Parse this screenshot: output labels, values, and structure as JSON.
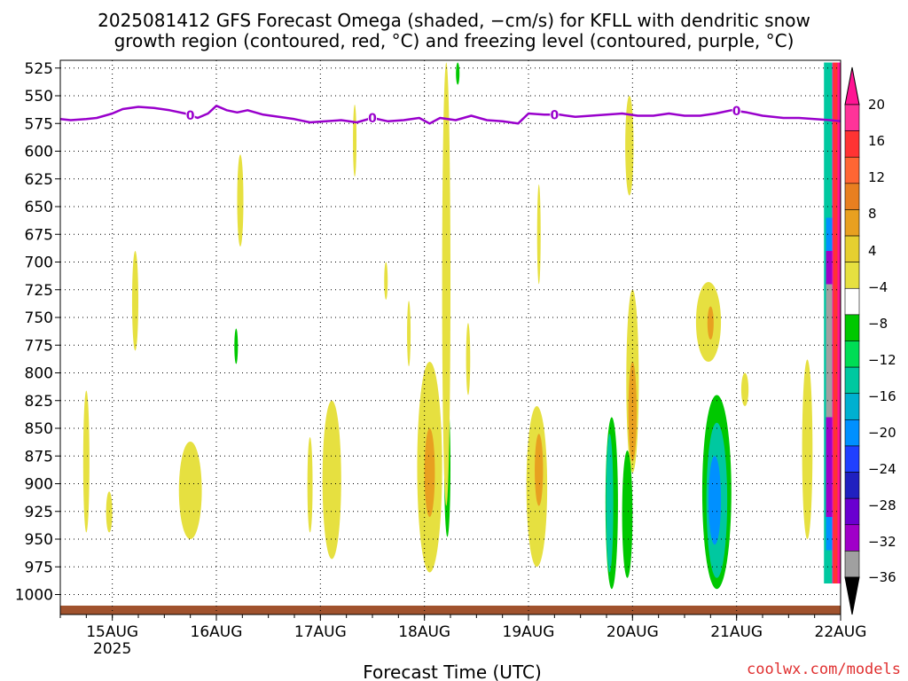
{
  "chart_data": {
    "type": "time-height",
    "title_lines": [
      "2025081412 GFS Forecast Omega (shaded, −cm/s) for KFLL with dendritic snow",
      "growth region (contoured, red, °C) and freezing level (contoured, purple, °C)"
    ],
    "xlabel": "Forecast Time (UTC)",
    "credit": "coolwx.com/models",
    "x_range_days": [
      "14AUG 12Z",
      "22AUG 00Z"
    ],
    "x_ticks": [
      {
        "label": "15AUG",
        "sublabel": "2025",
        "day": 15
      },
      {
        "label": "16AUG",
        "sublabel": "",
        "day": 16
      },
      {
        "label": "17AUG",
        "sublabel": "",
        "day": 17
      },
      {
        "label": "18AUG",
        "sublabel": "",
        "day": 18
      },
      {
        "label": "19AUG",
        "sublabel": "",
        "day": 19
      },
      {
        "label": "20AUG",
        "sublabel": "",
        "day": 20
      },
      {
        "label": "21AUG",
        "sublabel": "",
        "day": 21
      },
      {
        "label": "22AUG",
        "sublabel": "",
        "day": 22
      }
    ],
    "y_ticks_hpa": [
      "525",
      "550",
      "575",
      "600",
      "625",
      "650",
      "675",
      "700",
      "725",
      "750",
      "775",
      "800",
      "825",
      "850",
      "875",
      "900",
      "925",
      "950",
      "975",
      "1000"
    ],
    "y_range_hpa": [
      518,
      1018
    ],
    "grid": "dotted",
    "colorbar": {
      "labels": [
        "20",
        "16",
        "12",
        "8",
        "4",
        "−4",
        "−8",
        "−12",
        "−16",
        "−20",
        "−24",
        "−28",
        "−32",
        "−36"
      ],
      "bands": [
        "#ff3399",
        "#ff3333",
        "#ff6633",
        "#e87f20",
        "#e8a020",
        "#e6cf30",
        "#e6e040",
        "#ffffff",
        "#00c800",
        "#00dd55",
        "#00c8a0",
        "#00b0d0",
        "#0090ff",
        "#2040ff",
        "#2020c0",
        "#6a00d0",
        "#a000c8",
        "#a0a0a0"
      ],
      "top_arrow": "#ff1493",
      "bottom_arrow": "#000000"
    },
    "freezing_level": {
      "color": "#9900cc",
      "contour_label": "0",
      "label_days": [
        15.75,
        17.5,
        19.25,
        21.0
      ],
      "points": [
        [
          14.5,
          571
        ],
        [
          14.6,
          572
        ],
        [
          14.75,
          571
        ],
        [
          14.85,
          570
        ],
        [
          15.0,
          566
        ],
        [
          15.1,
          562
        ],
        [
          15.25,
          560
        ],
        [
          15.4,
          561
        ],
        [
          15.55,
          563
        ],
        [
          15.7,
          566
        ],
        [
          15.82,
          570
        ],
        [
          15.92,
          566
        ],
        [
          16.0,
          559
        ],
        [
          16.1,
          563
        ],
        [
          16.2,
          565
        ],
        [
          16.3,
          563
        ],
        [
          16.45,
          567
        ],
        [
          16.6,
          569
        ],
        [
          16.75,
          571
        ],
        [
          16.9,
          574
        ],
        [
          17.05,
          573
        ],
        [
          17.2,
          572
        ],
        [
          17.35,
          574
        ],
        [
          17.5,
          570
        ],
        [
          17.65,
          573
        ],
        [
          17.8,
          572
        ],
        [
          17.95,
          570
        ],
        [
          18.05,
          575
        ],
        [
          18.15,
          570
        ],
        [
          18.3,
          572
        ],
        [
          18.45,
          568
        ],
        [
          18.6,
          572
        ],
        [
          18.75,
          573
        ],
        [
          18.9,
          575
        ],
        [
          19.0,
          566
        ],
        [
          19.15,
          567
        ],
        [
          19.3,
          567
        ],
        [
          19.45,
          569
        ],
        [
          19.6,
          568
        ],
        [
          19.75,
          567
        ],
        [
          19.9,
          566
        ],
        [
          20.05,
          568
        ],
        [
          20.2,
          568
        ],
        [
          20.35,
          566
        ],
        [
          20.5,
          568
        ],
        [
          20.65,
          568
        ],
        [
          20.8,
          566
        ],
        [
          20.95,
          563
        ],
        [
          21.1,
          565
        ],
        [
          21.25,
          568
        ],
        [
          21.35,
          569
        ],
        [
          21.45,
          570
        ],
        [
          21.6,
          570
        ],
        [
          21.75,
          571
        ],
        [
          21.9,
          572
        ],
        [
          22.0,
          573
        ]
      ]
    },
    "omega_regions": [
      {
        "day": 14.75,
        "p_top": 816,
        "p_bot": 944,
        "half_days": 0.03,
        "color": "#e6e040"
      },
      {
        "day": 14.97,
        "p_top": 907,
        "p_bot": 944,
        "half_days": 0.03,
        "color": "#e6e040"
      },
      {
        "day": 15.22,
        "p_top": 690,
        "p_bot": 780,
        "half_days": 0.03,
        "color": "#e6e040"
      },
      {
        "day": 15.75,
        "p_top": 862,
        "p_bot": 950,
        "half_days": 0.11,
        "color": "#e6e040"
      },
      {
        "day": 16.23,
        "p_top": 603,
        "p_bot": 686,
        "half_days": 0.03,
        "color": "#e6e040"
      },
      {
        "day": 16.19,
        "p_top": 760,
        "p_bot": 792,
        "half_days": 0.012,
        "color": "#00c800"
      },
      {
        "day": 16.9,
        "p_top": 858,
        "p_bot": 944,
        "half_days": 0.025,
        "color": "#e6e040"
      },
      {
        "day": 17.11,
        "p_top": 825,
        "p_bot": 968,
        "half_days": 0.09,
        "color": "#e6e040"
      },
      {
        "day": 17.33,
        "p_top": 558,
        "p_bot": 623,
        "half_days": 0.012,
        "color": "#e6e040"
      },
      {
        "day": 17.63,
        "p_top": 700,
        "p_bot": 734,
        "half_days": 0.01,
        "color": "#e6e040"
      },
      {
        "day": 17.85,
        "p_top": 735,
        "p_bot": 794,
        "half_days": 0.012,
        "color": "#e6e040"
      },
      {
        "day": 18.05,
        "p_top": 790,
        "p_bot": 980,
        "half_days": 0.12,
        "color": "#e6e040"
      },
      {
        "day": 18.05,
        "p_top": 850,
        "p_bot": 930,
        "half_days": 0.05,
        "color": "#e8a020"
      },
      {
        "day": 18.22,
        "p_top": 822,
        "p_bot": 948,
        "half_days": 0.03,
        "color": "#00c800"
      },
      {
        "day": 18.21,
        "p_top": 520,
        "p_bot": 920,
        "half_days": 0.04,
        "color": "#e6e040"
      },
      {
        "day": 18.32,
        "p_top": 520,
        "p_bot": 540,
        "half_days": 0.01,
        "color": "#00c800"
      },
      {
        "day": 18.42,
        "p_top": 755,
        "p_bot": 820,
        "half_days": 0.02,
        "color": "#e6e040"
      },
      {
        "day": 19.08,
        "p_top": 830,
        "p_bot": 975,
        "half_days": 0.1,
        "color": "#e6e040"
      },
      {
        "day": 19.1,
        "p_top": 855,
        "p_bot": 920,
        "half_days": 0.04,
        "color": "#e8a020"
      },
      {
        "day": 19.1,
        "p_top": 630,
        "p_bot": 720,
        "half_days": 0.012,
        "color": "#e6e040"
      },
      {
        "day": 19.97,
        "p_top": 550,
        "p_bot": 640,
        "half_days": 0.04,
        "color": "#e6e040"
      },
      {
        "day": 20.0,
        "p_top": 725,
        "p_bot": 890,
        "half_days": 0.06,
        "color": "#e6e040"
      },
      {
        "day": 20.0,
        "p_top": 790,
        "p_bot": 880,
        "half_days": 0.04,
        "color": "#e8a020"
      },
      {
        "day": 19.95,
        "p_top": 870,
        "p_bot": 985,
        "half_days": 0.05,
        "color": "#00c800"
      },
      {
        "day": 19.8,
        "p_top": 840,
        "p_bot": 995,
        "half_days": 0.06,
        "color": "#00c800"
      },
      {
        "day": 19.78,
        "p_top": 855,
        "p_bot": 980,
        "half_days": 0.035,
        "color": "#00c8a0"
      },
      {
        "day": 20.73,
        "p_top": 718,
        "p_bot": 790,
        "half_days": 0.12,
        "color": "#e6e040"
      },
      {
        "day": 20.75,
        "p_top": 740,
        "p_bot": 770,
        "half_days": 0.03,
        "color": "#e8a020"
      },
      {
        "day": 21.08,
        "p_top": 800,
        "p_bot": 830,
        "half_days": 0.035,
        "color": "#e6e040"
      },
      {
        "day": 20.81,
        "p_top": 820,
        "p_bot": 995,
        "half_days": 0.14,
        "color": "#00c800"
      },
      {
        "day": 20.81,
        "p_top": 845,
        "p_bot": 985,
        "half_days": 0.1,
        "color": "#00c8a0"
      },
      {
        "day": 20.79,
        "p_top": 875,
        "p_bot": 955,
        "half_days": 0.06,
        "color": "#0090ff"
      },
      {
        "day": 21.68,
        "p_top": 788,
        "p_bot": 950,
        "half_days": 0.05,
        "color": "#e6e040"
      }
    ],
    "right_edge_columns": [
      {
        "day_start": 21.84,
        "day_end": 21.92,
        "color": "#00c8a0",
        "p_top": 520,
        "p_bot": 990
      },
      {
        "day_start": 21.86,
        "day_end": 21.92,
        "color": "#0090ff",
        "p_top": 660,
        "p_bot": 960
      },
      {
        "day_start": 21.86,
        "day_end": 21.92,
        "color": "#a000c8",
        "p_top": 690,
        "p_bot": 720
      },
      {
        "day_start": 21.86,
        "day_end": 21.92,
        "color": "#a0a0a0",
        "p_top": 720,
        "p_bot": 840
      },
      {
        "day_start": 21.86,
        "day_end": 21.92,
        "color": "#a000c8",
        "p_top": 840,
        "p_bot": 930
      },
      {
        "day_start": 21.92,
        "day_end": 22.0,
        "color": "#ff1493",
        "p_top": 520,
        "p_bot": 990
      },
      {
        "day_start": 21.93,
        "day_end": 21.97,
        "color": "#ff3333",
        "p_top": 520,
        "p_bot": 990
      }
    ],
    "terrain": {
      "color": "#a0522d",
      "p_top": 1010,
      "p_bot": 1018
    }
  }
}
